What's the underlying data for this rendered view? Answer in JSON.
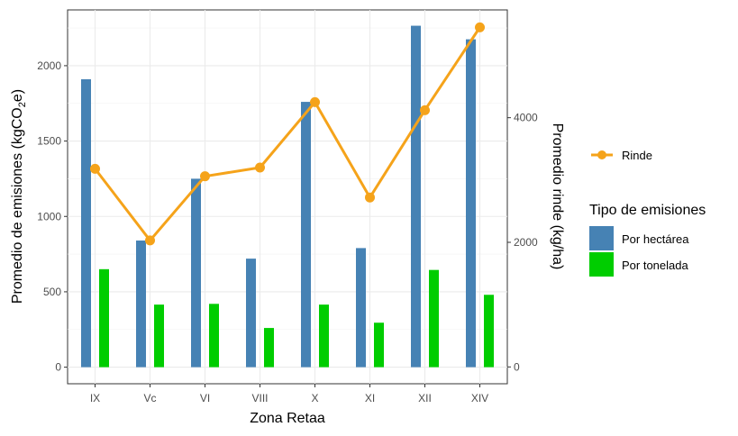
{
  "chart_data": {
    "type": "bar",
    "categories": [
      "IX",
      "Vc",
      "VI",
      "VIII",
      "X",
      "XI",
      "XII",
      "XIV"
    ],
    "series": [
      {
        "name": "Por hectárea",
        "axis": "left",
        "color": "#4682B4",
        "values": [
          1910,
          840,
          1250,
          720,
          1760,
          790,
          2265,
          2175
        ]
      },
      {
        "name": "Por tonelada",
        "axis": "left",
        "color": "#00CD00",
        "values": [
          650,
          415,
          420,
          260,
          415,
          295,
          645,
          480
        ]
      },
      {
        "name": "Rinde",
        "axis": "right",
        "type": "line",
        "color": "#F5A31A",
        "values": [
          3180,
          2030,
          3060,
          3200,
          4250,
          2720,
          4120,
          5450
        ]
      }
    ],
    "xlabel": "Zona Retaa",
    "ylabel_main": "Promedio de emisiones (kgCO",
    "ylabel_sub": "2",
    "ylabel_end": "e)",
    "y2label": "Promedio rinde (kg/ha)",
    "ylim": [
      -110,
      2370
    ],
    "y2lim": [
      -270,
      5730
    ],
    "yticks": [
      0,
      500,
      1000,
      1500,
      2000
    ],
    "y2ticks": [
      0,
      2000,
      4000
    ],
    "grid": true,
    "legend": {
      "placement": "right",
      "line_entry": "Rinde",
      "bar_title": "Tipo de emisiones",
      "bar_entries": [
        "Por hectárea",
        "Por tonelada"
      ]
    }
  }
}
